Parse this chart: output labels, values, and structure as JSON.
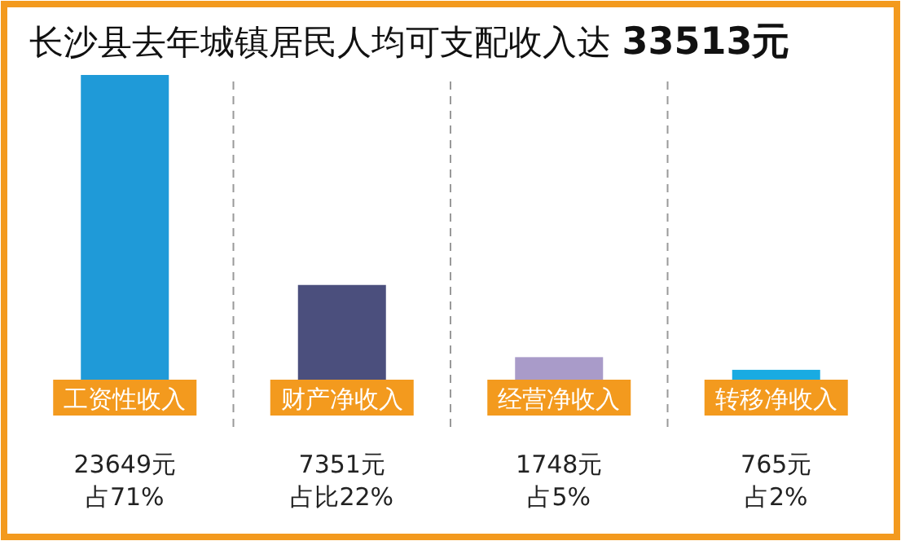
{
  "chart_data": {
    "type": "bar",
    "title": "长沙县去年城镇居民人均可支配收入达 33513元",
    "categories": [
      "工资性收入",
      "财产净收入",
      "经营净收入",
      "转移净收入"
    ],
    "values": [
      23649,
      7351,
      1748,
      765
    ],
    "colors": [
      "#1f9ad8",
      "#4b4f7d",
      "#a99bc9",
      "#19abe2"
    ],
    "value_labels": [
      "23649元",
      "7351元",
      "1748元",
      "765元"
    ],
    "annotations": [
      "占71%",
      "占比22%",
      "占5%",
      "占2%"
    ]
  }
}
